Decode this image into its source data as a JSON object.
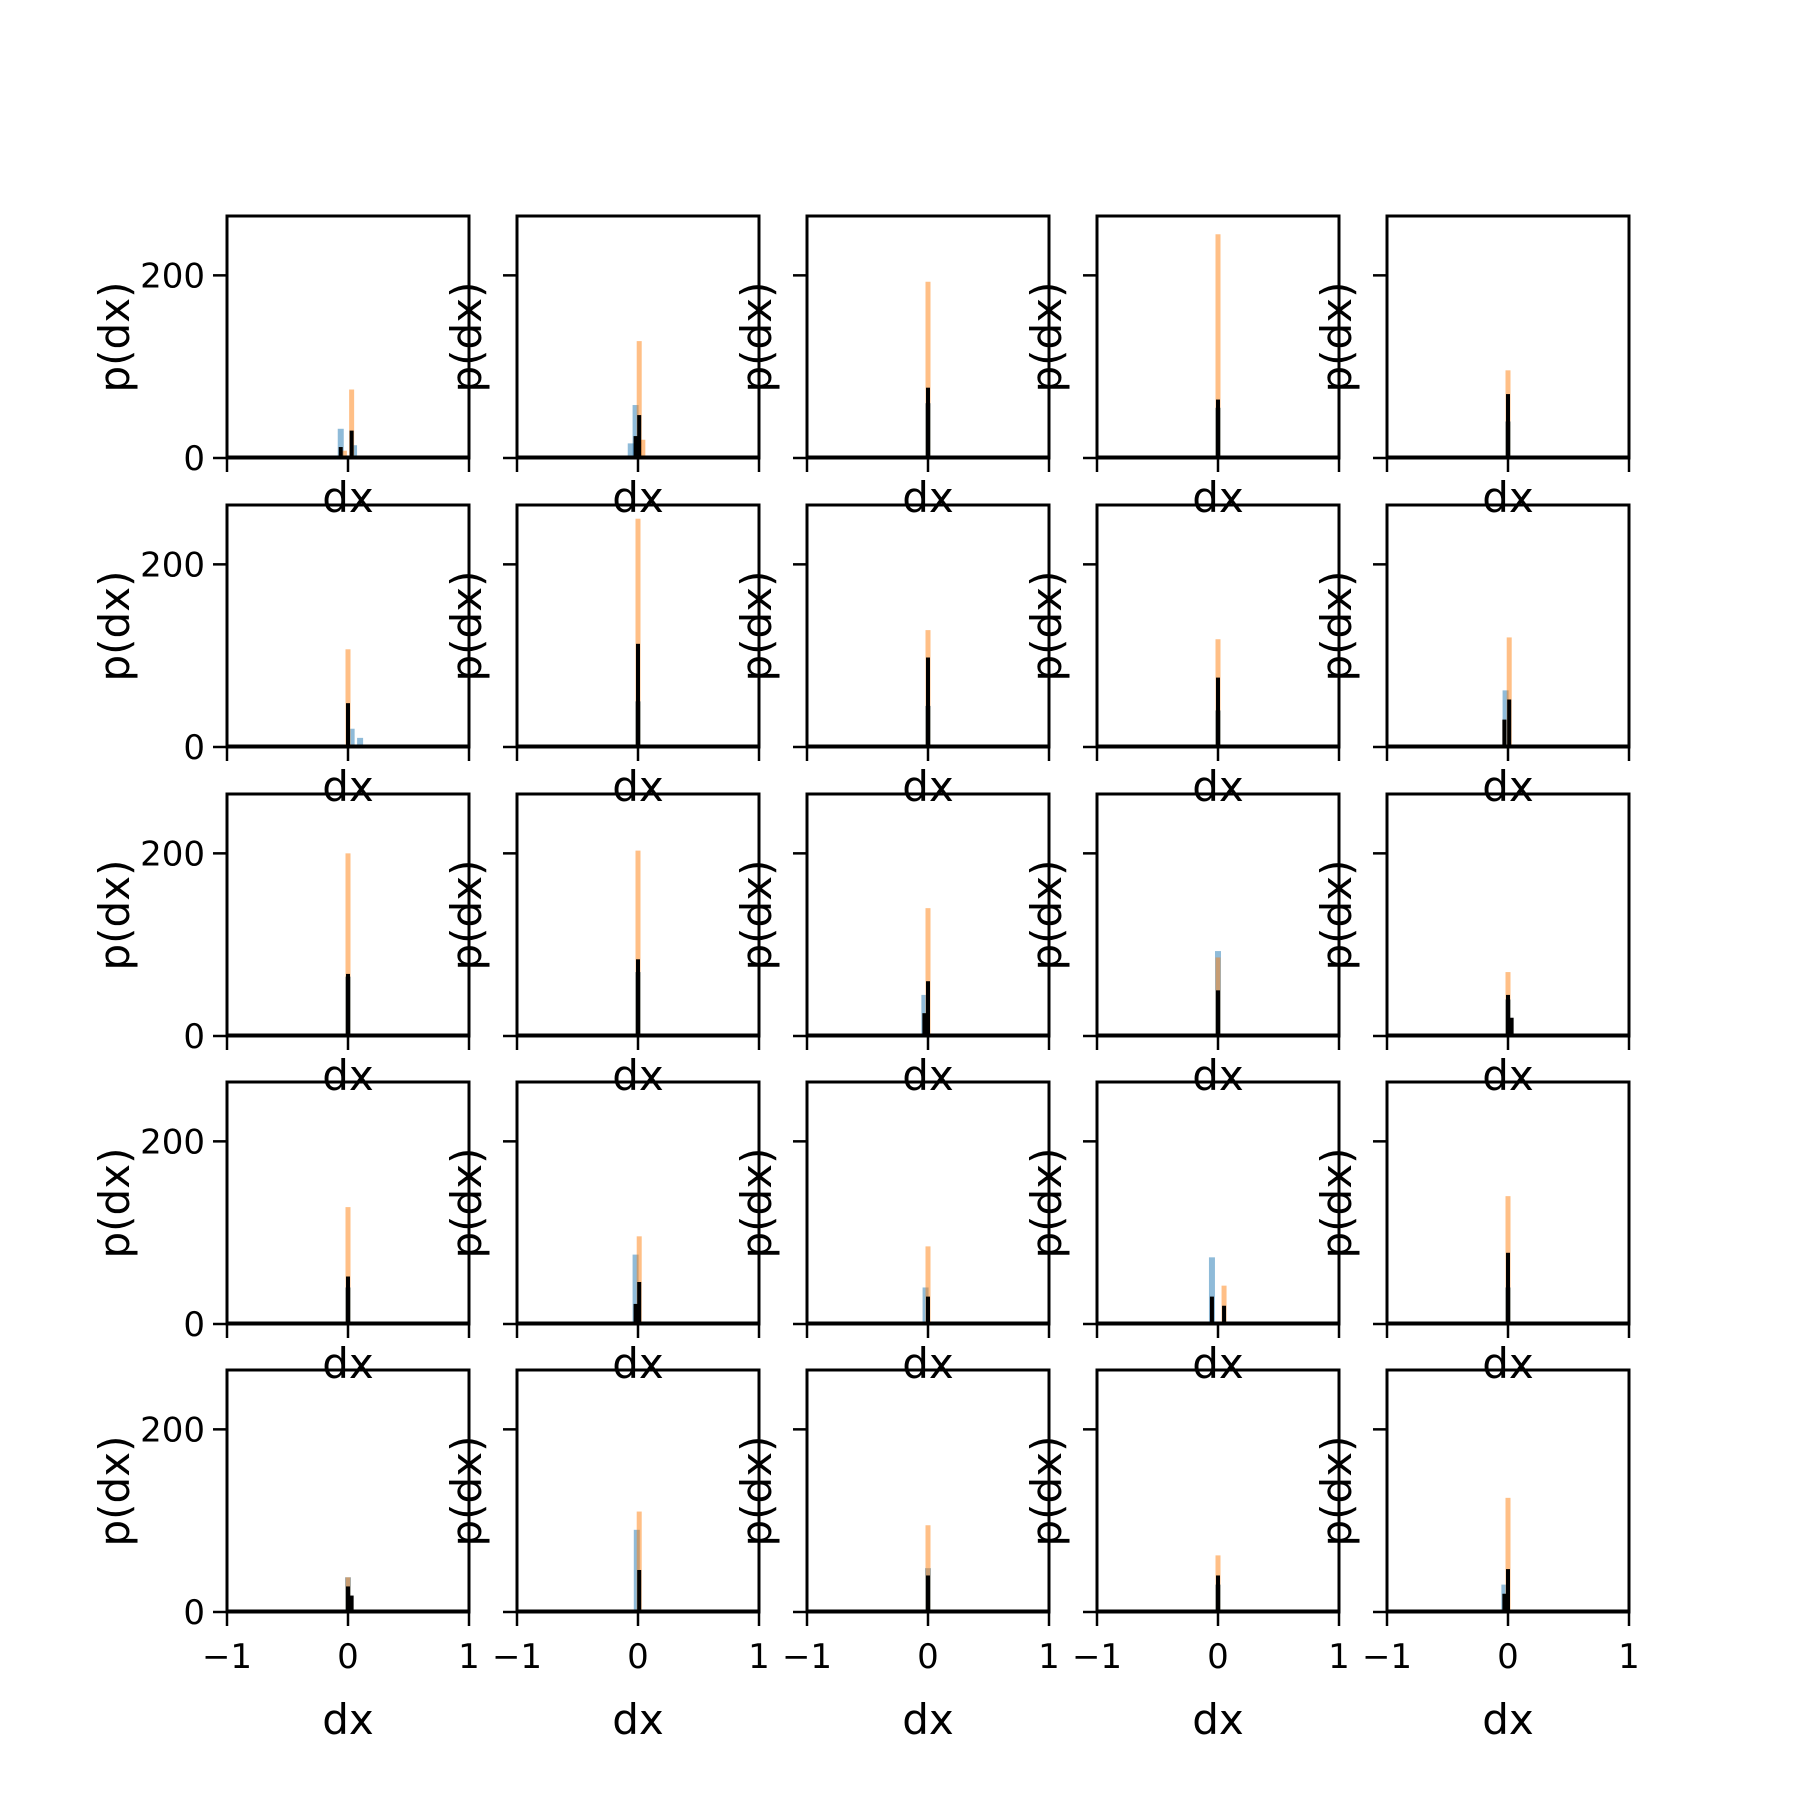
{
  "figure": {
    "xlabel": "dx",
    "ylabel": "p(dx)",
    "xticks": [
      -1,
      0,
      1
    ],
    "xtick_labels": [
      "−1",
      "0",
      "1"
    ],
    "yticks": [
      0,
      200
    ],
    "ytick_labels": [
      "0",
      "200"
    ],
    "xlim": [
      -1,
      1
    ],
    "ylim": [
      0,
      265
    ]
  },
  "colors": {
    "series_a": "#1f77b4",
    "series_b": "#ff7f0e",
    "series_c": "#000000"
  },
  "chart_data": {
    "type": "bar",
    "layout": "5x5 grid of histograms sharing axes",
    "xlabel": "dx",
    "ylabel": "p(dx)",
    "xlim": [
      -1,
      1
    ],
    "ylim": [
      0,
      265
    ],
    "grid": false,
    "panels": [
      {
        "a": [
          {
            "x": -0.06,
            "y": 32
          },
          {
            "x": 0.05,
            "y": 14
          }
        ],
        "b": [
          {
            "x": 0.03,
            "y": 75
          },
          {
            "x": -0.03,
            "y": 8
          }
        ],
        "c": [
          {
            "x": 0.03,
            "y": 30
          },
          {
            "x": -0.06,
            "y": 12
          }
        ]
      },
      {
        "a": [
          {
            "x": -0.02,
            "y": 58
          },
          {
            "x": -0.06,
            "y": 16
          }
        ],
        "b": [
          {
            "x": 0.01,
            "y": 128
          },
          {
            "x": 0.04,
            "y": 20
          }
        ],
        "c": [
          {
            "x": 0.01,
            "y": 47
          },
          {
            "x": -0.02,
            "y": 24
          }
        ]
      },
      {
        "a": [
          {
            "x": 0.0,
            "y": 60
          }
        ],
        "b": [
          {
            "x": 0.0,
            "y": 193
          }
        ],
        "c": [
          {
            "x": 0.0,
            "y": 77
          }
        ]
      },
      {
        "a": [
          {
            "x": 0.0,
            "y": 55
          }
        ],
        "b": [
          {
            "x": 0.0,
            "y": 245
          }
        ],
        "c": [
          {
            "x": 0.0,
            "y": 64
          }
        ]
      },
      {
        "a": [
          {
            "x": 0.0,
            "y": 40
          }
        ],
        "b": [
          {
            "x": 0.0,
            "y": 96
          }
        ],
        "c": [
          {
            "x": 0.0,
            "y": 70
          }
        ]
      },
      {
        "a": [
          {
            "x": 0.03,
            "y": 20
          },
          {
            "x": 0.1,
            "y": 10
          }
        ],
        "b": [
          {
            "x": 0.0,
            "y": 107
          }
        ],
        "c": [
          {
            "x": 0.0,
            "y": 48
          }
        ]
      },
      {
        "a": [
          {
            "x": 0.0,
            "y": 50
          }
        ],
        "b": [
          {
            "x": 0.0,
            "y": 250
          }
        ],
        "c": [
          {
            "x": 0.0,
            "y": 113
          }
        ]
      },
      {
        "a": [
          {
            "x": 0.0,
            "y": 45
          }
        ],
        "b": [
          {
            "x": 0.0,
            "y": 128
          }
        ],
        "c": [
          {
            "x": 0.0,
            "y": 98
          }
        ]
      },
      {
        "a": [
          {
            "x": 0.0,
            "y": 40
          }
        ],
        "b": [
          {
            "x": 0.0,
            "y": 118
          }
        ],
        "c": [
          {
            "x": 0.0,
            "y": 76
          }
        ]
      },
      {
        "a": [
          {
            "x": -0.02,
            "y": 62
          }
        ],
        "b": [
          {
            "x": 0.01,
            "y": 120
          }
        ],
        "c": [
          {
            "x": 0.01,
            "y": 52
          },
          {
            "x": -0.03,
            "y": 30
          }
        ]
      },
      {
        "a": [
          {
            "x": 0.0,
            "y": 65
          }
        ],
        "b": [
          {
            "x": 0.0,
            "y": 200
          }
        ],
        "c": [
          {
            "x": 0.0,
            "y": 68
          }
        ]
      },
      {
        "a": [
          {
            "x": 0.0,
            "y": 70
          }
        ],
        "b": [
          {
            "x": 0.0,
            "y": 203
          }
        ],
        "c": [
          {
            "x": 0.0,
            "y": 84
          }
        ]
      },
      {
        "a": [
          {
            "x": -0.03,
            "y": 45
          }
        ],
        "b": [
          {
            "x": 0.0,
            "y": 140
          }
        ],
        "c": [
          {
            "x": 0.0,
            "y": 60
          },
          {
            "x": -0.03,
            "y": 25
          }
        ]
      },
      {
        "a": [
          {
            "x": 0.0,
            "y": 93
          }
        ],
        "b": [
          {
            "x": 0.0,
            "y": 86
          }
        ],
        "c": [
          {
            "x": 0.0,
            "y": 50
          }
        ]
      },
      {
        "a": [
          {
            "x": 0.0,
            "y": 40
          }
        ],
        "b": [
          {
            "x": 0.0,
            "y": 70
          }
        ],
        "c": [
          {
            "x": 0.0,
            "y": 45
          },
          {
            "x": 0.03,
            "y": 20
          }
        ]
      },
      {
        "a": [
          {
            "x": 0.0,
            "y": 40
          }
        ],
        "b": [
          {
            "x": 0.0,
            "y": 128
          }
        ],
        "c": [
          {
            "x": 0.0,
            "y": 52
          }
        ]
      },
      {
        "a": [
          {
            "x": -0.02,
            "y": 76
          }
        ],
        "b": [
          {
            "x": 0.01,
            "y": 96
          }
        ],
        "c": [
          {
            "x": 0.01,
            "y": 46
          },
          {
            "x": -0.02,
            "y": 22
          }
        ]
      },
      {
        "a": [
          {
            "x": -0.02,
            "y": 40
          }
        ],
        "b": [
          {
            "x": 0.0,
            "y": 85
          }
        ],
        "c": [
          {
            "x": 0.0,
            "y": 30
          }
        ]
      },
      {
        "a": [
          {
            "x": -0.05,
            "y": 73
          }
        ],
        "b": [
          {
            "x": 0.05,
            "y": 42
          }
        ],
        "c": [
          {
            "x": 0.05,
            "y": 20
          },
          {
            "x": -0.05,
            "y": 30
          }
        ]
      },
      {
        "a": [
          {
            "x": 0.0,
            "y": 40
          }
        ],
        "b": [
          {
            "x": 0.0,
            "y": 140
          }
        ],
        "c": [
          {
            "x": 0.0,
            "y": 78
          }
        ]
      },
      {
        "a": [
          {
            "x": 0.0,
            "y": 38
          }
        ],
        "b": [
          {
            "x": 0.0,
            "y": 38
          }
        ],
        "c": [
          {
            "x": 0.0,
            "y": 28
          },
          {
            "x": 0.03,
            "y": 18
          }
        ]
      },
      {
        "a": [
          {
            "x": -0.01,
            "y": 90
          }
        ],
        "b": [
          {
            "x": 0.01,
            "y": 110
          }
        ],
        "c": [
          {
            "x": 0.01,
            "y": 46
          }
        ]
      },
      {
        "a": [
          {
            "x": 0.0,
            "y": 48
          }
        ],
        "b": [
          {
            "x": 0.0,
            "y": 95
          }
        ],
        "c": [
          {
            "x": 0.0,
            "y": 40
          }
        ]
      },
      {
        "a": [
          {
            "x": 0.0,
            "y": 30
          }
        ],
        "b": [
          {
            "x": 0.0,
            "y": 62
          }
        ],
        "c": [
          {
            "x": 0.0,
            "y": 40
          }
        ]
      },
      {
        "a": [
          {
            "x": -0.03,
            "y": 30
          }
        ],
        "b": [
          {
            "x": 0.0,
            "y": 125
          }
        ],
        "c": [
          {
            "x": 0.0,
            "y": 47
          },
          {
            "x": -0.03,
            "y": 20
          }
        ]
      }
    ]
  }
}
